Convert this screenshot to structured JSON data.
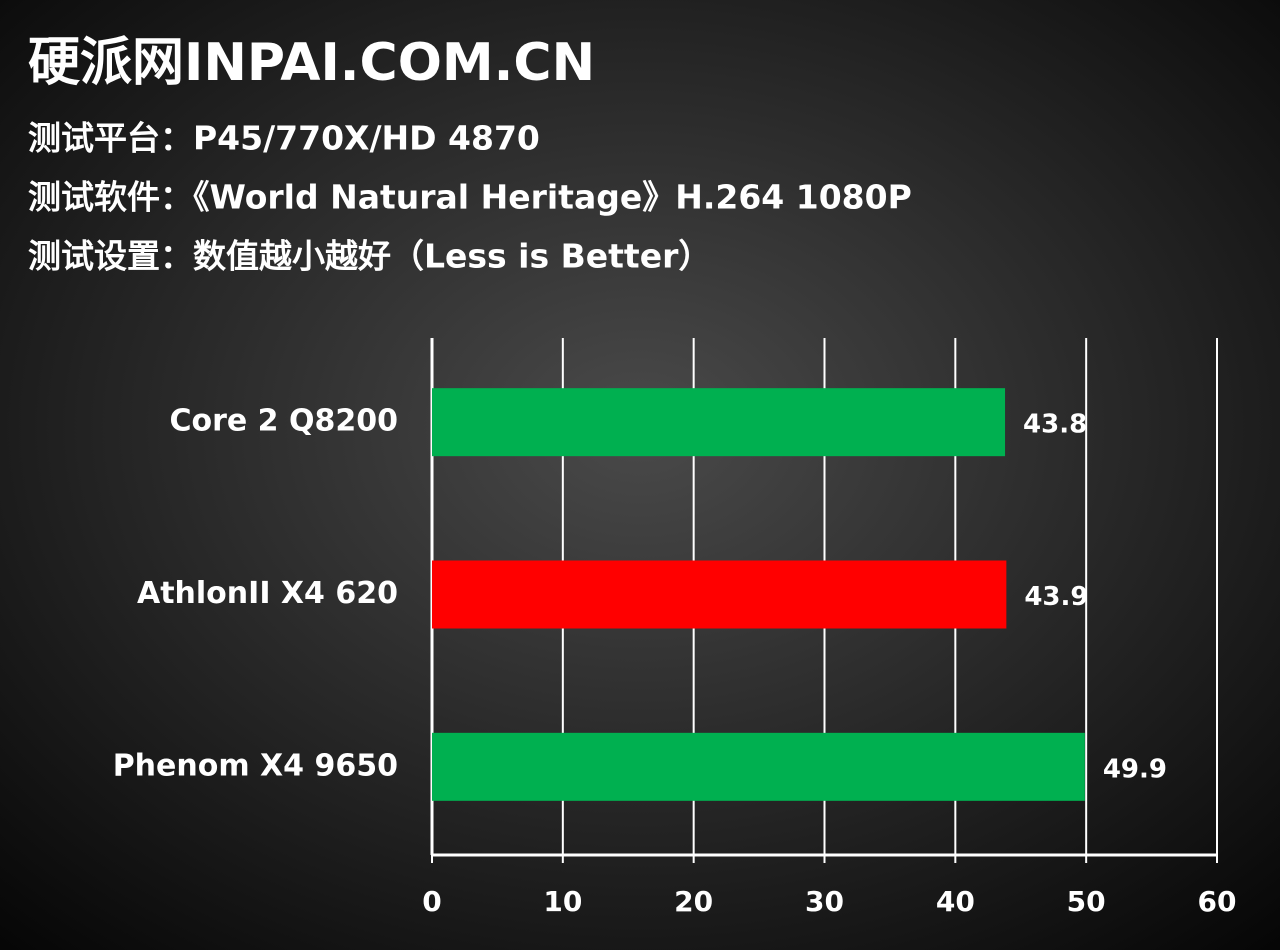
{
  "chart_data": {
    "type": "bar",
    "orientation": "horizontal",
    "title": "硬派网INPAI.COM.CN",
    "subtitles": [
      "测试平台：P45/770X/HD 4870",
      "测试软件：《World Natural Heritage》H.264 1080P",
      "测试设置：数值越小越好（Less is Better）"
    ],
    "categories": [
      "Core 2 Q8200",
      "AthlonII X4 620",
      "Phenom X4 9650"
    ],
    "values": [
      43.8,
      43.9,
      49.9
    ],
    "colors": [
      "#00b050",
      "#ff0000",
      "#00b050"
    ],
    "xlim": [
      0,
      60
    ],
    "xticks": [
      0,
      10,
      20,
      30,
      40,
      50,
      60
    ],
    "grid": true
  }
}
